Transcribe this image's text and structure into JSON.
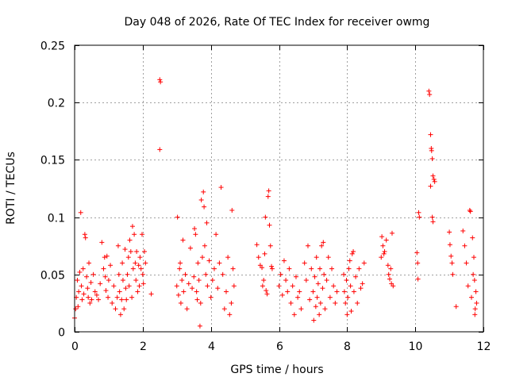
{
  "chart_data": {
    "type": "scatter",
    "title": "Day 048 of 2026, Rate Of TEC Index for receiver owmg",
    "xlabel": "GPS time / hours",
    "ylabel": "ROTI / TECUs",
    "xlim": [
      0,
      12
    ],
    "ylim": [
      0,
      0.25
    ],
    "xticks": [
      0,
      2,
      4,
      6,
      8,
      10,
      12
    ],
    "xtick_labels": [
      "0",
      "2",
      "4",
      "6",
      "8",
      "10",
      "12"
    ],
    "yticks": [
      0,
      0.05,
      0.1,
      0.15,
      0.2,
      0.25
    ],
    "ytick_labels": [
      "0",
      "0.05",
      "0.1",
      "0.15",
      "0.2",
      "0.25"
    ],
    "grid": true,
    "marker": "+",
    "color": "#ff0000",
    "series": [
      {
        "name": "ROTI",
        "points": [
          [
            0.0,
            0.012
          ],
          [
            0.03,
            0.02
          ],
          [
            0.05,
            0.03
          ],
          [
            0.08,
            0.045
          ],
          [
            0.1,
            0.022
          ],
          [
            0.12,
            0.035
          ],
          [
            0.15,
            0.052
          ],
          [
            0.18,
            0.104
          ],
          [
            0.2,
            0.04
          ],
          [
            0.22,
            0.028
          ],
          [
            0.25,
            0.055
          ],
          [
            0.27,
            0.033
          ],
          [
            0.3,
            0.085
          ],
          [
            0.32,
            0.082
          ],
          [
            0.35,
            0.048
          ],
          [
            0.38,
            0.038
          ],
          [
            0.4,
            0.03
          ],
          [
            0.42,
            0.06
          ],
          [
            0.45,
            0.025
          ],
          [
            0.48,
            0.043
          ],
          [
            0.5,
            0.028
          ],
          [
            0.55,
            0.05
          ],
          [
            0.6,
            0.035
          ],
          [
            0.65,
            0.032
          ],
          [
            0.7,
            0.028
          ],
          [
            0.75,
            0.042
          ],
          [
            0.8,
            0.078
          ],
          [
            0.85,
            0.055
          ],
          [
            0.88,
            0.065
          ],
          [
            0.9,
            0.048
          ],
          [
            0.92,
            0.036
          ],
          [
            0.95,
            0.066
          ],
          [
            0.98,
            0.03
          ],
          [
            1.0,
            0.045
          ],
          [
            1.05,
            0.058
          ],
          [
            1.1,
            0.025
          ],
          [
            1.15,
            0.04
          ],
          [
            1.2,
            0.02
          ],
          [
            1.25,
            0.03
          ],
          [
            1.28,
            0.075
          ],
          [
            1.3,
            0.05
          ],
          [
            1.32,
            0.035
          ],
          [
            1.35,
            0.015
          ],
          [
            1.38,
            0.028
          ],
          [
            1.4,
            0.06
          ],
          [
            1.42,
            0.045
          ],
          [
            1.45,
            0.02
          ],
          [
            1.48,
            0.072
          ],
          [
            1.5,
            0.038
          ],
          [
            1.52,
            0.028
          ],
          [
            1.55,
            0.05
          ],
          [
            1.58,
            0.065
          ],
          [
            1.6,
            0.04
          ],
          [
            1.62,
            0.08
          ],
          [
            1.65,
            0.07
          ],
          [
            1.68,
            0.03
          ],
          [
            1.7,
            0.092
          ],
          [
            1.72,
            0.055
          ],
          [
            1.75,
            0.085
          ],
          [
            1.78,
            0.06
          ],
          [
            1.8,
            0.045
          ],
          [
            1.82,
            0.07
          ],
          [
            1.85,
            0.035
          ],
          [
            1.88,
            0.058
          ],
          [
            1.9,
            0.04
          ],
          [
            1.92,
            0.065
          ],
          [
            1.95,
            0.055
          ],
          [
            1.98,
            0.085
          ],
          [
            2.0,
            0.05
          ],
          [
            2.02,
            0.042
          ],
          [
            2.05,
            0.07
          ],
          [
            2.08,
            0.06
          ],
          [
            2.25,
            0.033
          ],
          [
            2.5,
            0.22
          ],
          [
            2.52,
            0.218
          ],
          [
            2.5,
            0.159
          ],
          [
            3.0,
            0.04
          ],
          [
            3.02,
            0.1
          ],
          [
            3.05,
            0.032
          ],
          [
            3.08,
            0.055
          ],
          [
            3.1,
            0.06
          ],
          [
            3.12,
            0.025
          ],
          [
            3.15,
            0.045
          ],
          [
            3.18,
            0.08
          ],
          [
            3.2,
            0.035
          ],
          [
            3.25,
            0.05
          ],
          [
            3.3,
            0.02
          ],
          [
            3.35,
            0.042
          ],
          [
            3.4,
            0.073
          ],
          [
            3.45,
            0.038
          ],
          [
            3.5,
            0.048
          ],
          [
            3.52,
            0.09
          ],
          [
            3.55,
            0.085
          ],
          [
            3.58,
            0.035
          ],
          [
            3.6,
            0.028
          ],
          [
            3.62,
            0.06
          ],
          [
            3.65,
            0.045
          ],
          [
            3.68,
            0.005
          ],
          [
            3.7,
            0.025
          ],
          [
            3.72,
            0.115
          ],
          [
            3.75,
            0.065
          ],
          [
            3.78,
            0.122
          ],
          [
            3.8,
            0.109
          ],
          [
            3.82,
            0.075
          ],
          [
            3.85,
            0.05
          ],
          [
            3.88,
            0.095
          ],
          [
            3.9,
            0.04
          ],
          [
            3.95,
            0.062
          ],
          [
            4.0,
            0.03
          ],
          [
            4.05,
            0.045
          ],
          [
            4.1,
            0.055
          ],
          [
            4.15,
            0.085
          ],
          [
            4.2,
            0.038
          ],
          [
            4.25,
            0.06
          ],
          [
            4.3,
            0.126
          ],
          [
            4.35,
            0.05
          ],
          [
            4.4,
            0.02
          ],
          [
            4.45,
            0.035
          ],
          [
            4.5,
            0.065
          ],
          [
            4.55,
            0.015
          ],
          [
            4.6,
            0.025
          ],
          [
            4.62,
            0.106
          ],
          [
            4.65,
            0.055
          ],
          [
            4.68,
            0.04
          ],
          [
            5.35,
            0.076
          ],
          [
            5.4,
            0.065
          ],
          [
            5.45,
            0.058
          ],
          [
            5.5,
            0.056
          ],
          [
            5.52,
            0.04
          ],
          [
            5.55,
            0.045
          ],
          [
            5.58,
            0.068
          ],
          [
            5.6,
            0.1
          ],
          [
            5.62,
            0.036
          ],
          [
            5.65,
            0.033
          ],
          [
            5.68,
            0.118
          ],
          [
            5.7,
            0.123
          ],
          [
            5.72,
            0.093
          ],
          [
            5.75,
            0.075
          ],
          [
            5.78,
            0.057
          ],
          [
            5.8,
            0.055
          ],
          [
            6.0,
            0.04
          ],
          [
            6.05,
            0.05
          ],
          [
            6.1,
            0.032
          ],
          [
            6.15,
            0.062
          ],
          [
            6.2,
            0.045
          ],
          [
            6.25,
            0.035
          ],
          [
            6.3,
            0.055
          ],
          [
            6.35,
            0.025
          ],
          [
            6.4,
            0.04
          ],
          [
            6.45,
            0.015
          ],
          [
            6.5,
            0.048
          ],
          [
            6.55,
            0.03
          ],
          [
            6.6,
            0.035
          ],
          [
            6.65,
            0.02
          ],
          [
            6.75,
            0.06
          ],
          [
            6.8,
            0.045
          ],
          [
            6.85,
            0.075
          ],
          [
            6.9,
            0.028
          ],
          [
            6.95,
            0.055
          ],
          [
            7.0,
            0.035
          ],
          [
            7.02,
            0.01
          ],
          [
            7.05,
            0.048
          ],
          [
            7.08,
            0.022
          ],
          [
            7.1,
            0.065
          ],
          [
            7.12,
            0.03
          ],
          [
            7.15,
            0.042
          ],
          [
            7.18,
            0.015
          ],
          [
            7.2,
            0.055
          ],
          [
            7.22,
            0.025
          ],
          [
            7.25,
            0.075
          ],
          [
            7.28,
            0.038
          ],
          [
            7.3,
            0.078
          ],
          [
            7.32,
            0.05
          ],
          [
            7.35,
            0.02
          ],
          [
            7.4,
            0.045
          ],
          [
            7.45,
            0.065
          ],
          [
            7.5,
            0.03
          ],
          [
            7.55,
            0.055
          ],
          [
            7.6,
            0.04
          ],
          [
            7.65,
            0.025
          ],
          [
            7.7,
            0.035
          ],
          [
            7.9,
            0.05
          ],
          [
            7.92,
            0.035
          ],
          [
            7.95,
            0.025
          ],
          [
            7.98,
            0.045
          ],
          [
            8.0,
            0.015
          ],
          [
            8.02,
            0.03
          ],
          [
            8.05,
            0.055
          ],
          [
            8.08,
            0.062
          ],
          [
            8.1,
            0.04
          ],
          [
            8.12,
            0.018
          ],
          [
            8.15,
            0.068
          ],
          [
            8.18,
            0.07
          ],
          [
            8.2,
            0.035
          ],
          [
            8.25,
            0.048
          ],
          [
            8.3,
            0.025
          ],
          [
            8.35,
            0.055
          ],
          [
            8.4,
            0.038
          ],
          [
            8.45,
            0.042
          ],
          [
            8.5,
            0.06
          ],
          [
            9.0,
            0.065
          ],
          [
            9.02,
            0.083
          ],
          [
            9.05,
            0.075
          ],
          [
            9.08,
            0.068
          ],
          [
            9.1,
            0.07
          ],
          [
            9.15,
            0.08
          ],
          [
            9.2,
            0.058
          ],
          [
            9.22,
            0.05
          ],
          [
            9.25,
            0.046
          ],
          [
            9.28,
            0.055
          ],
          [
            9.3,
            0.042
          ],
          [
            9.32,
            0.086
          ],
          [
            9.35,
            0.04
          ],
          [
            10.05,
            0.069
          ],
          [
            10.07,
            0.06
          ],
          [
            10.08,
            0.046
          ],
          [
            10.1,
            0.104
          ],
          [
            10.12,
            0.1
          ],
          [
            10.4,
            0.21
          ],
          [
            10.42,
            0.207
          ],
          [
            10.45,
            0.172
          ],
          [
            10.47,
            0.16
          ],
          [
            10.48,
            0.158
          ],
          [
            10.5,
            0.151
          ],
          [
            10.52,
            0.136
          ],
          [
            10.55,
            0.133
          ],
          [
            10.57,
            0.131
          ],
          [
            10.45,
            0.127
          ],
          [
            10.5,
            0.1
          ],
          [
            10.52,
            0.096
          ],
          [
            11.0,
            0.087
          ],
          [
            11.02,
            0.076
          ],
          [
            11.05,
            0.066
          ],
          [
            11.08,
            0.06
          ],
          [
            11.1,
            0.05
          ],
          [
            11.2,
            0.022
          ],
          [
            11.4,
            0.088
          ],
          [
            11.45,
            0.075
          ],
          [
            11.5,
            0.06
          ],
          [
            11.55,
            0.04
          ],
          [
            11.6,
            0.106
          ],
          [
            11.62,
            0.105
          ],
          [
            11.65,
            0.03
          ],
          [
            11.68,
            0.082
          ],
          [
            11.7,
            0.05
          ],
          [
            11.72,
            0.065
          ],
          [
            11.74,
            0.045
          ],
          [
            11.76,
            0.02
          ],
          [
            11.78,
            0.035
          ],
          [
            11.8,
            0.025
          ],
          [
            11.75,
            0.015
          ]
        ]
      }
    ]
  }
}
